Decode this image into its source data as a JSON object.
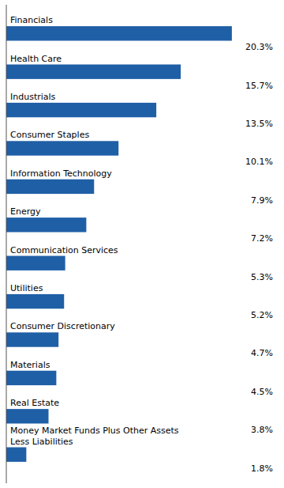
{
  "chart_data": {
    "type": "bar",
    "orientation": "horizontal",
    "categories": [
      "Financials",
      "Health Care",
      "Industrials",
      "Consumer Staples",
      "Information Technology",
      "Energy",
      "Communication Services",
      "Utilities",
      "Consumer Discretionary",
      "Materials",
      "Real Estate",
      "Money Market Funds Plus Other Assets\nLess Liabilities"
    ],
    "values": [
      20.3,
      15.7,
      13.5,
      10.1,
      7.9,
      7.2,
      5.3,
      5.2,
      4.7,
      4.5,
      3.8,
      1.8
    ],
    "value_labels": [
      "20.3%",
      "15.7%",
      "13.5%",
      "10.1%",
      "7.9%",
      "7.2%",
      "5.3%",
      "5.2%",
      "4.7%",
      "4.5%",
      "3.8%",
      "1.8%"
    ],
    "color": "#1f5fa6",
    "xlim": [
      0,
      24
    ],
    "data_labels": true,
    "tick_labels": false
  }
}
